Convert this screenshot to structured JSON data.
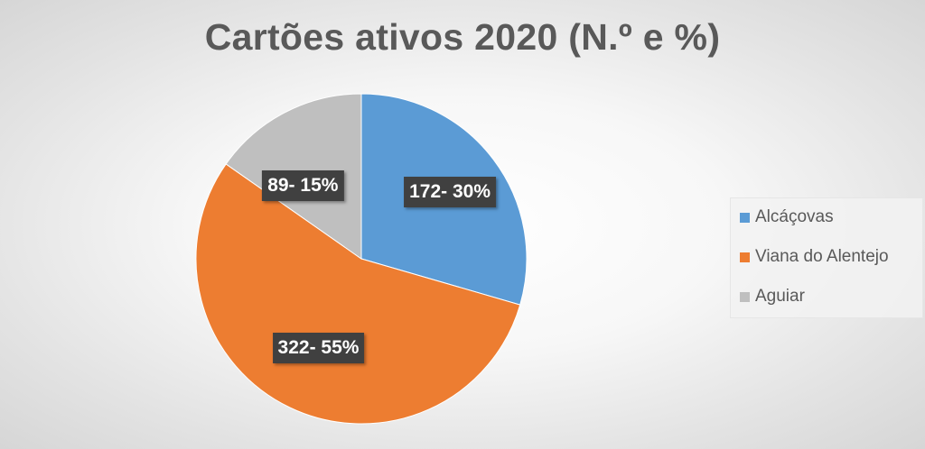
{
  "chart_data": {
    "type": "pie",
    "title": "Cartões ativos 2020 (N.º e %)",
    "slices": [
      {
        "name": "Alcáçovas",
        "value": 172,
        "percent": 30,
        "label": "172- 30%",
        "color": "#5B9BD5"
      },
      {
        "name": "Viana do Alentejo",
        "value": 322,
        "percent": 55,
        "label": "322- 55%",
        "color": "#ED7D31"
      },
      {
        "name": "Aguiar",
        "value": 89,
        "percent": 15,
        "label": "89- 15%",
        "color": "#BFBFBF"
      }
    ],
    "start_angle": "12 o'clock",
    "direction": "clockwise",
    "legend_position": "right",
    "data_label_style": "dark box, white bold text"
  }
}
